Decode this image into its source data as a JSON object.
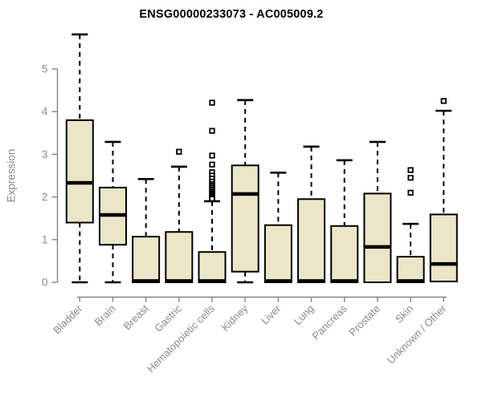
{
  "chart_data": {
    "type": "boxplot",
    "title": "ENSG00000233073 - AC005009.2",
    "ylabel": "Expression",
    "xlabel": "",
    "ylim": [
      0,
      5.9
    ],
    "yticks": [
      0,
      1,
      2,
      3,
      4,
      5
    ],
    "grid": false,
    "legend": "none",
    "colors": {
      "box_fill": "#ECE6C8",
      "box_border": "#000000",
      "median": "#000000",
      "whisker": "#000000",
      "axis": "#848484",
      "tick_label": "#8b8b8b",
      "title": "#000000",
      "background": "#ffffff"
    },
    "categories": [
      "Bladder",
      "Brain",
      "Breast",
      "Gastric",
      "Hematopoietic cells",
      "Kidney",
      "Liver",
      "Lung",
      "Pancreas",
      "Prostate",
      "Skin",
      "Unknown / Other"
    ],
    "series": [
      {
        "category": "Bladder",
        "low": 0.0,
        "q1": 1.4,
        "median": 2.33,
        "q3": 3.8,
        "high": 5.81,
        "outliers": []
      },
      {
        "category": "Brain",
        "low": 0.0,
        "q1": 0.88,
        "median": 1.58,
        "q3": 2.22,
        "high": 3.29,
        "outliers": []
      },
      {
        "category": "Breast",
        "low": 0.0,
        "q1": 0.0,
        "median": 0.03,
        "q3": 1.07,
        "high": 2.42,
        "outliers": []
      },
      {
        "category": "Gastric",
        "low": 0.0,
        "q1": 0.0,
        "median": 0.03,
        "q3": 1.18,
        "high": 2.71,
        "outliers": [
          3.06
        ]
      },
      {
        "category": "Hematopoietic cells",
        "low": 0.0,
        "q1": 0.0,
        "median": 0.03,
        "q3": 0.71,
        "high": 1.9,
        "outliers": [
          4.21,
          3.55,
          2.97,
          2.76,
          2.58,
          2.5,
          2.43,
          2.36,
          2.3,
          2.26,
          2.22,
          2.18,
          2.14,
          2.11,
          2.08,
          2.05,
          2.02,
          1.99,
          1.96
        ]
      },
      {
        "category": "Kidney",
        "low": 0.0,
        "q1": 0.25,
        "median": 2.07,
        "q3": 2.74,
        "high": 4.27,
        "outliers": []
      },
      {
        "category": "Liver",
        "low": 0.0,
        "q1": 0.0,
        "median": 0.03,
        "q3": 1.34,
        "high": 2.57,
        "outliers": []
      },
      {
        "category": "Lung",
        "low": 0.0,
        "q1": 0.0,
        "median": 0.03,
        "q3": 1.95,
        "high": 3.18,
        "outliers": []
      },
      {
        "category": "Pancreas",
        "low": 0.0,
        "q1": 0.0,
        "median": 0.03,
        "q3": 1.32,
        "high": 2.86,
        "outliers": []
      },
      {
        "category": "Prostate",
        "low": 0.0,
        "q1": 0.0,
        "median": 0.83,
        "q3": 2.08,
        "high": 3.29,
        "outliers": []
      },
      {
        "category": "Skin",
        "low": 0.0,
        "q1": 0.0,
        "median": 0.03,
        "q3": 0.6,
        "high": 1.37,
        "outliers": [
          2.63,
          2.45,
          2.1
        ]
      },
      {
        "category": "Unknown / Other",
        "low": 0.02,
        "q1": 0.02,
        "median": 0.43,
        "q3": 1.59,
        "high": 4.02,
        "outliers": [
          4.25
        ]
      }
    ]
  }
}
